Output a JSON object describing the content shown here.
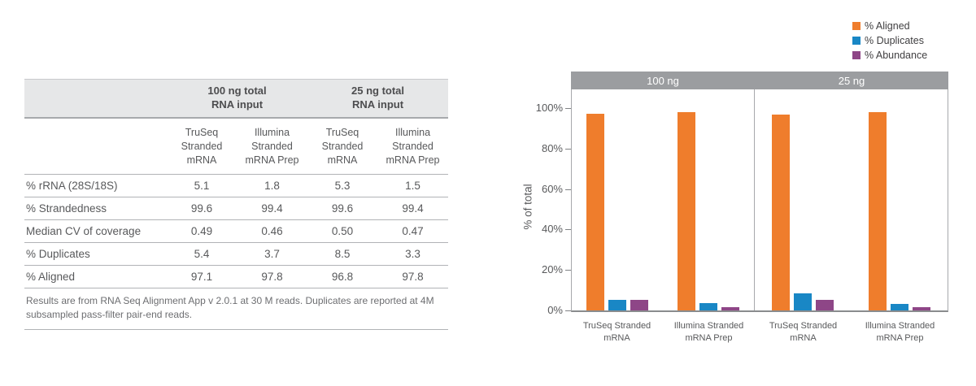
{
  "table": {
    "col_groups": [
      "100 ng total\nRNA input",
      "25 ng total\nRNA input"
    ],
    "sub_headers": [
      "TruSeq\nStranded\nmRNA",
      "Illumina\nStranded\nmRNA Prep",
      "TruSeq\nStranded\nmRNA",
      "Illumina\nStranded\nmRNA Prep"
    ],
    "rows": [
      {
        "label": "% rRNA (28S/18S)",
        "values": [
          "5.1",
          "1.8",
          "5.3",
          "1.5"
        ]
      },
      {
        "label": "% Strandedness",
        "values": [
          "99.6",
          "99.4",
          "99.6",
          "99.4"
        ]
      },
      {
        "label": "Median CV of coverage",
        "values": [
          "0.49",
          "0.46",
          "0.50",
          "0.47"
        ]
      },
      {
        "label": "% Duplicates",
        "values": [
          "5.4",
          "3.7",
          "8.5",
          "3.3"
        ]
      },
      {
        "label": "% Aligned",
        "values": [
          "97.1",
          "97.8",
          "96.8",
          "97.8"
        ]
      }
    ],
    "footnote": "Results are from RNA Seq Alignment App v 2.0.1 at 30 M reads. Duplicates are reported at 4M subsampled pass-filter pair-end reads."
  },
  "chart_data": {
    "type": "bar",
    "title": "",
    "xlabel": "",
    "ylabel": "% of total",
    "ylim": [
      0,
      100
    ],
    "grid": false,
    "legend_position": "top-right",
    "yticks": [
      {
        "value": 0,
        "label": "0%"
      },
      {
        "value": 20,
        "label": "20%"
      },
      {
        "value": 40,
        "label": "40%"
      },
      {
        "value": 60,
        "label": "60%"
      },
      {
        "value": 80,
        "label": "80%"
      },
      {
        "value": 100,
        "label": "100%"
      }
    ],
    "legend": [
      {
        "name": "% Aligned",
        "color": "#EF7D2C"
      },
      {
        "name": "% Duplicates",
        "color": "#1987C5"
      },
      {
        "name": "% Abundance",
        "color": "#8E4687"
      }
    ],
    "panels": [
      {
        "label": "100 ng",
        "groups": [
          {
            "category": "TruSeq Stranded\nmRNA",
            "values": [
              97.1,
              5.4,
              5.1
            ]
          },
          {
            "category": "Illumina Stranded\nmRNA Prep",
            "values": [
              97.8,
              3.7,
              1.8
            ]
          }
        ]
      },
      {
        "label": "25 ng",
        "groups": [
          {
            "category": "TruSeq Stranded\nmRNA",
            "values": [
              96.8,
              8.5,
              5.3
            ]
          },
          {
            "category": "Illumina Stranded\nmRNA Prep",
            "values": [
              97.8,
              3.3,
              1.5
            ]
          }
        ]
      }
    ]
  }
}
